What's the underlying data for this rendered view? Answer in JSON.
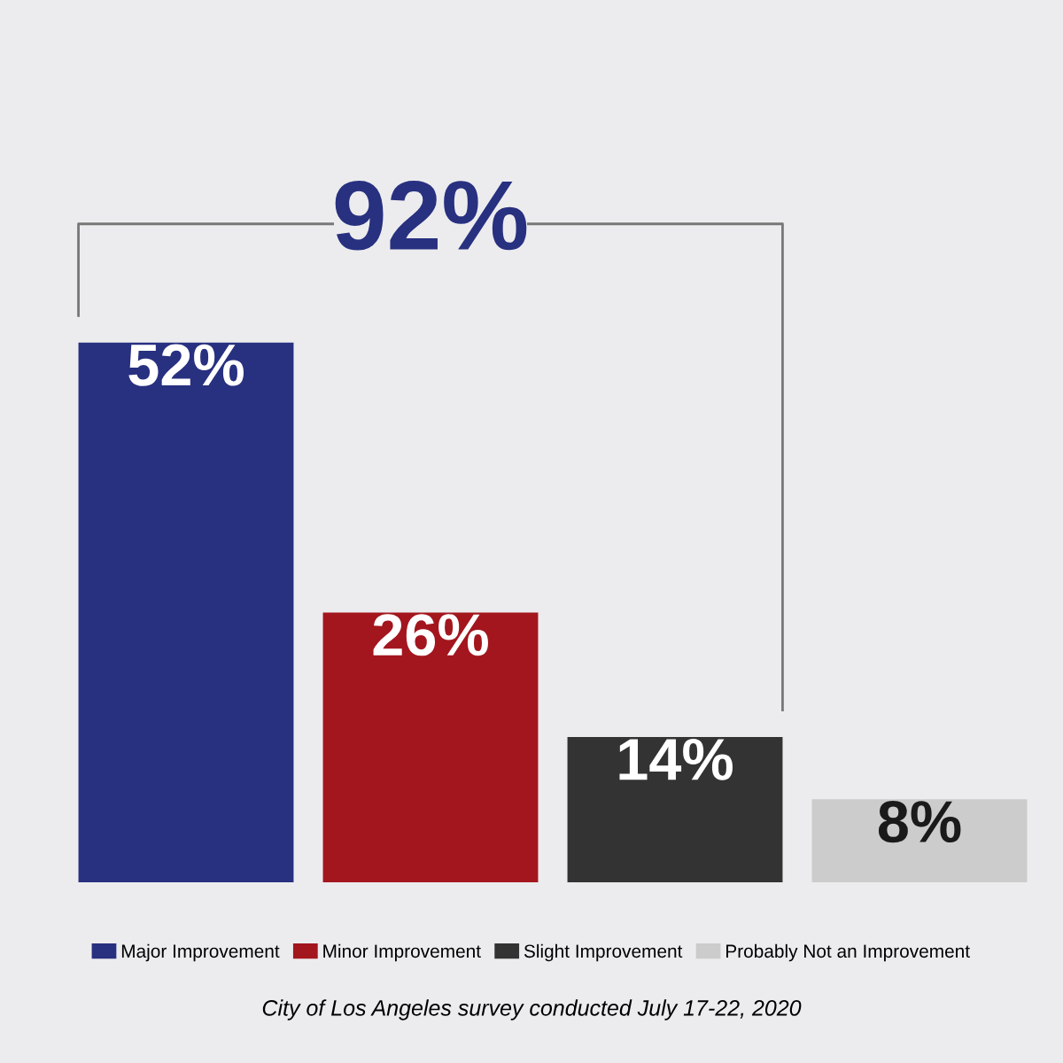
{
  "chart_data": {
    "type": "bar",
    "categories": [
      null,
      null,
      null,
      null
    ],
    "series": [
      {
        "name": "Major Improvement",
        "color": "#283080",
        "values": [
          52,
          null,
          null,
          null
        ],
        "value_labels": [
          "52%",
          null,
          null,
          null
        ]
      },
      {
        "name": "Minor Improvement",
        "color": "#a3161e",
        "values": [
          null,
          26,
          null,
          null
        ],
        "value_labels": [
          null,
          "26%",
          null,
          null
        ]
      },
      {
        "name": "Slight Improvement",
        "color": "#333333",
        "values": [
          null,
          null,
          14,
          null
        ],
        "value_labels": [
          null,
          null,
          "14%",
          null
        ]
      },
      {
        "name": "Probably Not an Improvement",
        "color": "#cccccc",
        "values": [
          null,
          null,
          null,
          8
        ],
        "value_labels": [
          null,
          null,
          null,
          "8%"
        ]
      }
    ],
    "stacked": true,
    "legend": "bottom",
    "grid": false,
    "annotations": [
      "92%",
      "City of Los Angeles survey conducted July 17-22, 2020"
    ]
  }
}
